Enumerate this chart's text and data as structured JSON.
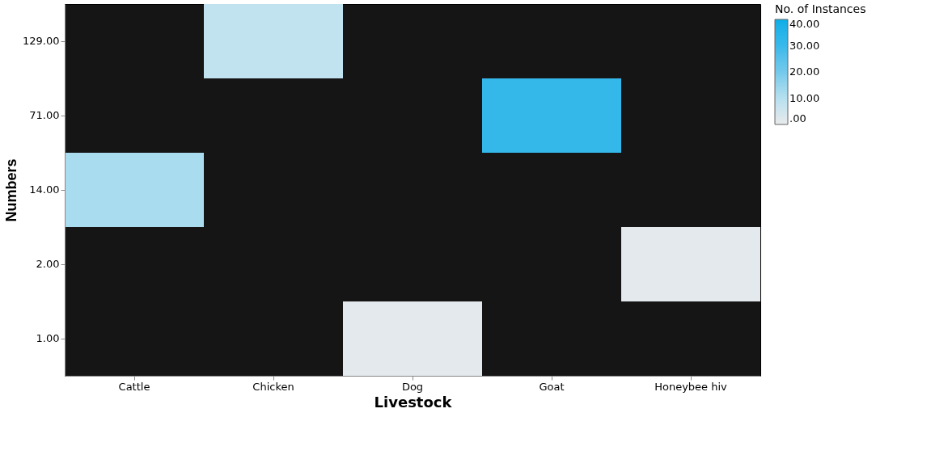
{
  "chart_data": {
    "type": "heatmap",
    "xlabel": "Livestock",
    "ylabel": "Numbers",
    "clabel": "No. of Instances",
    "categories": [
      "Cattle",
      "Chicken",
      "Dog",
      "Goat",
      "Honeybee hiv"
    ],
    "y_categories": [
      "129.00",
      "71.00",
      "14.00",
      "2.00",
      "1.00"
    ],
    "cells": [
      [
        null,
        8,
        null,
        null,
        null
      ],
      [
        null,
        null,
        null,
        31,
        null
      ],
      [
        12,
        null,
        null,
        null,
        null
      ],
      [
        null,
        null,
        null,
        null,
        1
      ],
      [
        null,
        null,
        1,
        null,
        null
      ]
    ],
    "clim": [
      0,
      40
    ],
    "cticks": [
      {
        "value": 40,
        "label": "40.00"
      },
      {
        "value": 30,
        "label": "30.00"
      },
      {
        "value": 20,
        "label": "20.00"
      },
      {
        "value": 10,
        "label": "10.00"
      },
      {
        "value": 0,
        "label": ".00"
      }
    ],
    "colors": [
      "#e8eaeb",
      "#b6e0ef",
      "#72c9ec",
      "#37b9ea",
      "#0baee8"
    ]
  }
}
